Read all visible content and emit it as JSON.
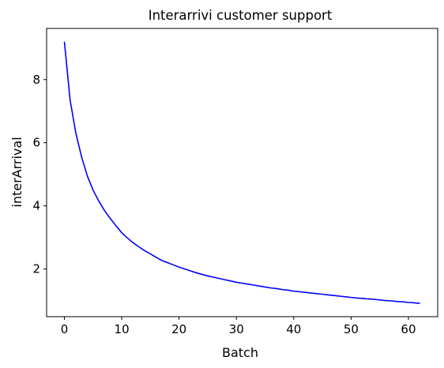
{
  "chart_data": {
    "type": "line",
    "title": "Interarrivi customer support",
    "xlabel": "Batch",
    "ylabel": "interArrival",
    "xlim": [
      -3.1,
      65.1
    ],
    "ylim": [
      0.49,
      9.62
    ],
    "xticks": [
      "0",
      "10",
      "20",
      "30",
      "40",
      "50",
      "60"
    ],
    "yticks": [
      "2",
      "4",
      "6",
      "8"
    ],
    "grid": false,
    "legend": "none",
    "series": [
      {
        "color": "#0000ff",
        "x": [
          0,
          1,
          2,
          3,
          4,
          5,
          6,
          7,
          8,
          9,
          10,
          11,
          12,
          13,
          14,
          15,
          16,
          17,
          18,
          19,
          20,
          21,
          22,
          23,
          24,
          25,
          26,
          27,
          28,
          29,
          30,
          31,
          32,
          33,
          34,
          35,
          36,
          37,
          38,
          39,
          40,
          41,
          42,
          43,
          44,
          45,
          46,
          47,
          48,
          49,
          50,
          51,
          52,
          53,
          54,
          55,
          56,
          57,
          58,
          59,
          60,
          61,
          62
        ],
        "y": [
          9.2,
          7.35,
          6.3,
          5.55,
          4.95,
          4.5,
          4.15,
          3.85,
          3.6,
          3.37,
          3.15,
          2.98,
          2.83,
          2.7,
          2.58,
          2.48,
          2.37,
          2.27,
          2.2,
          2.13,
          2.06,
          2.0,
          1.94,
          1.88,
          1.83,
          1.78,
          1.74,
          1.7,
          1.66,
          1.62,
          1.58,
          1.55,
          1.52,
          1.49,
          1.46,
          1.43,
          1.4,
          1.38,
          1.35,
          1.33,
          1.3,
          1.28,
          1.26,
          1.24,
          1.22,
          1.2,
          1.18,
          1.16,
          1.14,
          1.12,
          1.1,
          1.08,
          1.07,
          1.05,
          1.04,
          1.02,
          1.0,
          0.99,
          0.97,
          0.96,
          0.94,
          0.93,
          0.91
        ]
      }
    ]
  }
}
